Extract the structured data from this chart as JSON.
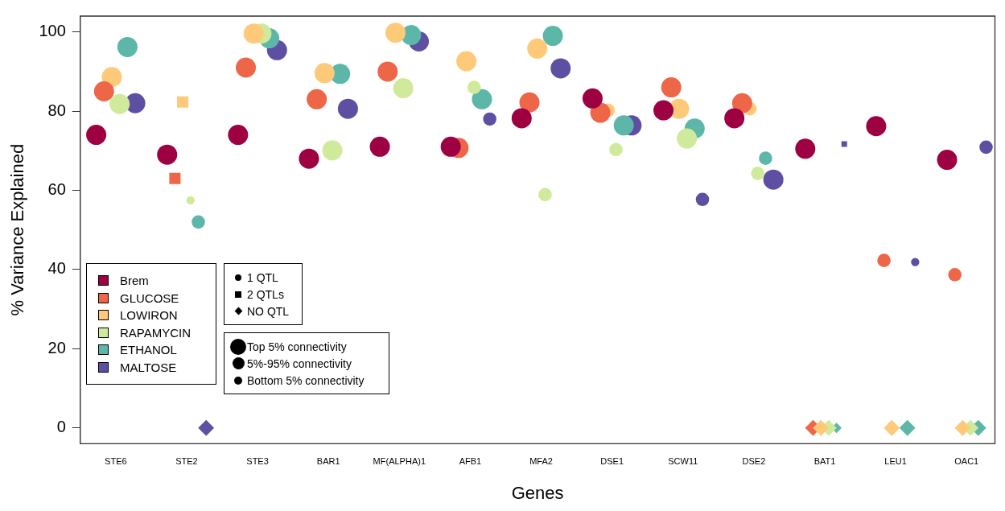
{
  "chart_data": {
    "type": "bubble",
    "xlabel": "Genes",
    "ylabel": "% Variance Explained",
    "categories": [
      "STE6",
      "STE2",
      "STE3",
      "BAR1",
      "MF(ALPHA)1",
      "AFB1",
      "MFA2",
      "DSE1",
      "SCW11",
      "DSE2",
      "BAT1",
      "LEU1",
      "OAC1"
    ],
    "ylim": [
      -4,
      104
    ],
    "yticks": [
      0,
      20,
      40,
      60,
      80,
      100
    ],
    "grid": false,
    "legend": "bottom left",
    "series": [
      {
        "name": "Brem",
        "color": "#9e0142",
        "marker": "circle",
        "values": [
          74,
          69,
          74,
          68,
          71,
          71,
          78.2,
          83.2,
          80.2,
          78.2,
          70.5,
          76.2,
          67.7
        ],
        "sizes": [
          1,
          1,
          1,
          1,
          1,
          1,
          1,
          1,
          1,
          1,
          1,
          1,
          1
        ]
      },
      {
        "name": "GLUCOSE",
        "color": "#ee6648",
        "marker": "circle",
        "values": [
          85,
          null,
          91,
          83,
          90,
          70.7,
          82.2,
          79.6,
          86,
          82,
          null,
          42.3,
          38.7
        ],
        "sizes": [
          1,
          null,
          1,
          1,
          1,
          1,
          1,
          1,
          1,
          1,
          null,
          0.44,
          0.44
        ]
      },
      {
        "name": "LOWIRON",
        "color": "#fec979",
        "marker": "circle",
        "values": [
          88.6,
          null,
          99.6,
          89.6,
          99.8,
          92.6,
          95.8,
          80.2,
          80.6,
          80.6,
          null,
          null,
          null
        ],
        "sizes": [
          1,
          null,
          1,
          1,
          1,
          1,
          1,
          0.44,
          1,
          0.44,
          null,
          null,
          null
        ]
      },
      {
        "name": "RAPAMYCIN",
        "color": "#d0ea9b",
        "marker": "circle",
        "values": [
          81.8,
          57.5,
          99.6,
          70.1,
          85.8,
          86,
          58.9,
          70.3,
          73.1,
          64.3,
          null,
          null,
          null
        ],
        "sizes": [
          1,
          0.17,
          1,
          1,
          1,
          0.44,
          0.44,
          0.44,
          1,
          0.44,
          null,
          null,
          null
        ]
      },
      {
        "name": "ETHANOL",
        "color": "#5cb7a9",
        "marker": "circle",
        "values": [
          96.2,
          52,
          98.4,
          89.4,
          99.2,
          83,
          99,
          76.4,
          75.6,
          68.1,
          null,
          null,
          null
        ],
        "sizes": [
          1,
          0.44,
          1,
          1,
          1,
          1,
          1,
          1,
          1,
          0.44,
          null,
          null,
          null
        ]
      },
      {
        "name": "MALTOSE",
        "color": "#5e4fa2",
        "marker": "circle",
        "values": [
          82,
          null,
          95.4,
          80.6,
          97.6,
          78,
          90.8,
          76.4,
          57.7,
          62.7,
          null,
          41.9,
          70.9
        ],
        "sizes": [
          1,
          null,
          1,
          1,
          1,
          0.44,
          1,
          1,
          0.44,
          1,
          null,
          0.17,
          0.44
        ]
      },
      {
        "color": "#ee6648",
        "marker": "square",
        "values": [
          null,
          63,
          null,
          null,
          null,
          null,
          null,
          null,
          null,
          null,
          null,
          null,
          null
        ],
        "sizes": [
          null,
          0.4,
          null,
          null,
          null,
          null,
          null,
          null,
          null,
          null,
          null,
          null,
          null
        ]
      },
      {
        "color": "#fec979",
        "marker": "square",
        "values": [
          null,
          82.3,
          null,
          null,
          null,
          null,
          null,
          null,
          null,
          null,
          null,
          null,
          null
        ],
        "sizes": [
          null,
          0.4,
          null,
          null,
          null,
          null,
          null,
          null,
          null,
          null,
          null,
          null,
          null
        ]
      },
      {
        "color": "#5e4fa2",
        "marker": "square",
        "values": [
          null,
          null,
          null,
          null,
          null,
          null,
          null,
          null,
          null,
          null,
          71.7,
          null,
          null
        ],
        "sizes": [
          null,
          null,
          null,
          null,
          null,
          null,
          null,
          null,
          null,
          null,
          0.1,
          null,
          null
        ]
      },
      {
        "color": "#5e4fa2",
        "marker": "diamond",
        "values": [
          null,
          0,
          null,
          null,
          null,
          null,
          null,
          null,
          null,
          null,
          null,
          null,
          null
        ],
        "sizes": [
          null,
          0.4,
          null,
          null,
          null,
          null,
          null,
          null,
          null,
          null,
          null,
          null,
          null
        ]
      },
      {
        "color": "#fec979",
        "marker": "diamond",
        "values": [
          null,
          null,
          null,
          null,
          null,
          null,
          null,
          null,
          null,
          null,
          0,
          0,
          0
        ],
        "sizes": [
          null,
          null,
          null,
          null,
          null,
          null,
          null,
          null,
          null,
          null,
          0.4,
          0.4,
          0.4
        ]
      },
      {
        "color": "#ee6648",
        "marker": "diamond",
        "values": [
          null,
          null,
          null,
          null,
          null,
          null,
          null,
          null,
          null,
          null,
          0,
          null,
          null
        ],
        "sizes": [
          null,
          null,
          null,
          null,
          null,
          null,
          null,
          null,
          null,
          null,
          0.4,
          null,
          null
        ]
      },
      {
        "color": "#d0ea9b",
        "marker": "diamond",
        "values": [
          null,
          null,
          null,
          null,
          null,
          null,
          null,
          null,
          null,
          null,
          0,
          null,
          0
        ],
        "sizes": [
          null,
          null,
          null,
          null,
          null,
          null,
          null,
          null,
          null,
          null,
          0.4,
          null,
          0.4
        ]
      },
      {
        "color": "#5cb7a9",
        "marker": "diamond",
        "values": [
          null,
          null,
          null,
          null,
          null,
          null,
          null,
          null,
          null,
          null,
          0,
          0,
          0
        ],
        "sizes": [
          null,
          null,
          null,
          null,
          null,
          null,
          null,
          null,
          null,
          null,
          0.17,
          0.4,
          0.4
        ]
      }
    ],
    "annotations": [
      "1 QTL",
      "2 QTLs",
      "NO QTL",
      "Top 5% connectivity",
      "5%-95% connectivity",
      "Bottom 5% connectivity"
    ]
  }
}
